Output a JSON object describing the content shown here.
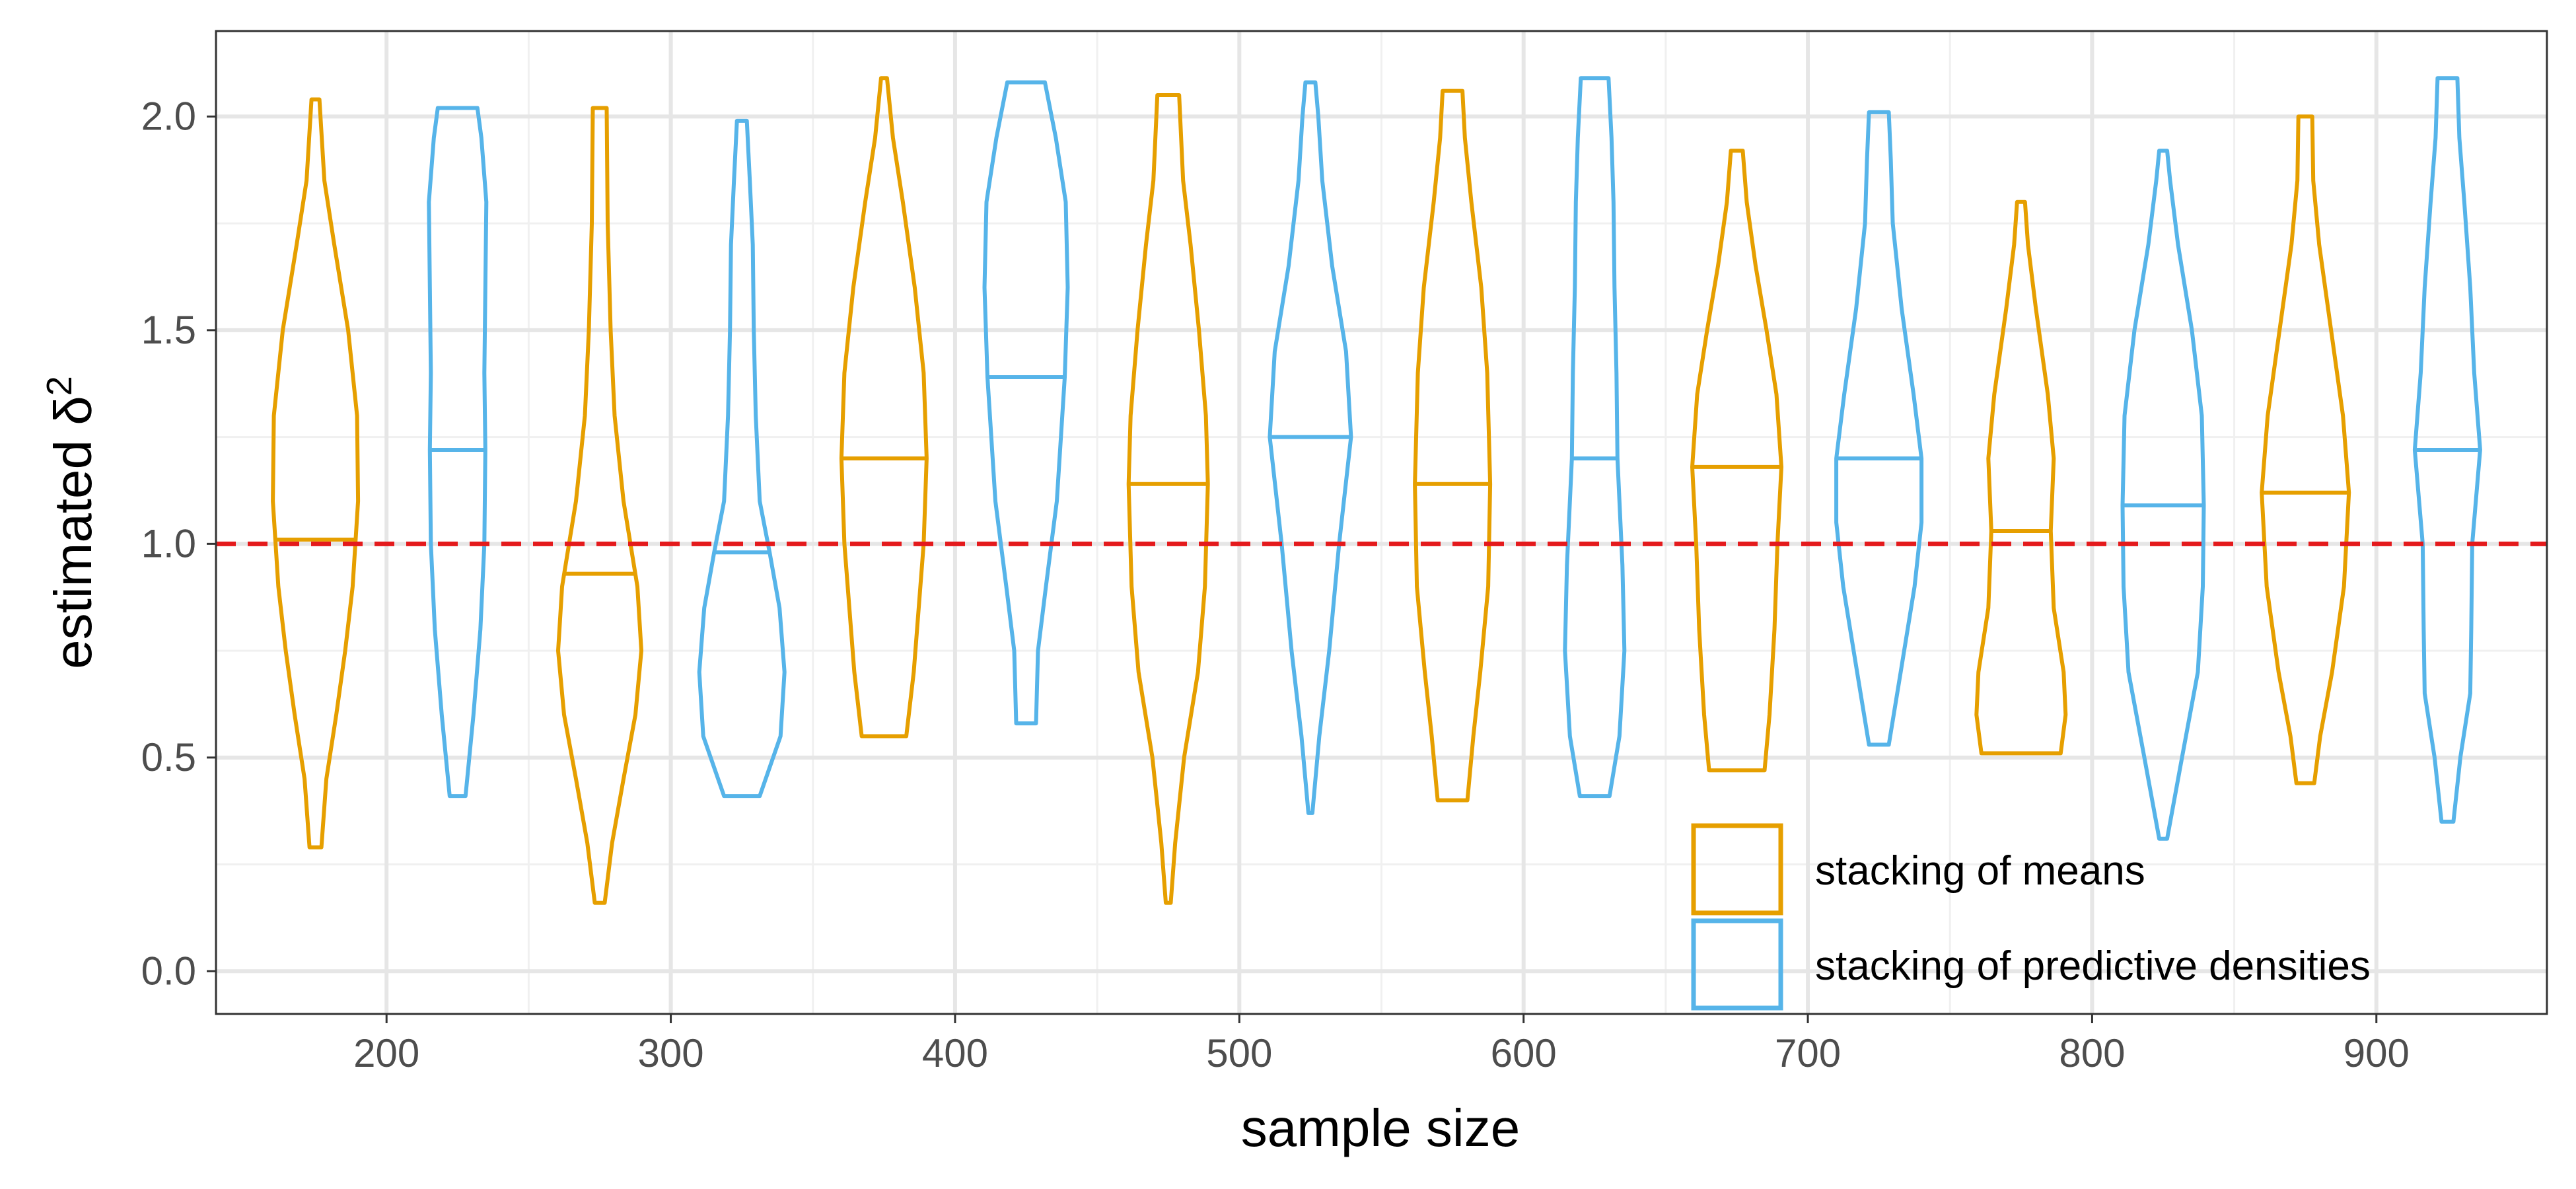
{
  "chart_data": {
    "type": "violin",
    "xlabel": "sample size",
    "ylabel": "estimated δ",
    "ylabel_superscript": "2",
    "xlim": [
      140,
      960
    ],
    "ylim": [
      -0.1,
      2.2
    ],
    "x_ticks": [
      200,
      300,
      400,
      500,
      600,
      700,
      800,
      900
    ],
    "x_tick_labels": [
      "200",
      "300",
      "400",
      "500",
      "600",
      "700",
      "800",
      "900"
    ],
    "y_ticks": [
      0.0,
      0.5,
      1.0,
      1.5,
      2.0
    ],
    "y_tick_labels": [
      "0.0",
      "0.5",
      "1.0",
      "1.5",
      "2.0"
    ],
    "y_minor_ticks": [
      0.25,
      0.75,
      1.25,
      1.75
    ],
    "x_minor_ticks": [
      250,
      350,
      450,
      550,
      650,
      750,
      850
    ],
    "grid": true,
    "reference_line": {
      "y": 1.0,
      "color": "#e41a1c",
      "style": "dashed"
    },
    "legend_position": "bottom-right",
    "dodge_offset": 25,
    "series": [
      {
        "name": "stacking of means",
        "color": "#E69F00",
        "dodge": -1,
        "violins": [
          {
            "x": 200,
            "min": 0.29,
            "max": 2.04,
            "median": 1.01,
            "profile": [
              [
                0.29,
                0.12
              ],
              [
                0.45,
                0.22
              ],
              [
                0.6,
                0.42
              ],
              [
                0.75,
                0.6
              ],
              [
                0.9,
                0.75
              ],
              [
                1.1,
                0.86
              ],
              [
                1.3,
                0.84
              ],
              [
                1.5,
                0.66
              ],
              [
                1.7,
                0.38
              ],
              [
                1.85,
                0.18
              ],
              [
                2.04,
                0.08
              ]
            ]
          },
          {
            "x": 300,
            "min": 0.16,
            "max": 2.02,
            "median": 0.93,
            "profile": [
              [
                0.16,
                0.1
              ],
              [
                0.3,
                0.25
              ],
              [
                0.45,
                0.48
              ],
              [
                0.6,
                0.72
              ],
              [
                0.75,
                0.84
              ],
              [
                0.9,
                0.76
              ],
              [
                1.1,
                0.48
              ],
              [
                1.3,
                0.3
              ],
              [
                1.5,
                0.22
              ],
              [
                1.75,
                0.16
              ],
              [
                2.02,
                0.14
              ]
            ]
          },
          {
            "x": 400,
            "min": 0.55,
            "max": 2.09,
            "median": 1.2,
            "profile": [
              [
                0.55,
                0.45
              ],
              [
                0.7,
                0.6
              ],
              [
                0.85,
                0.7
              ],
              [
                1.0,
                0.8
              ],
              [
                1.2,
                0.86
              ],
              [
                1.4,
                0.8
              ],
              [
                1.6,
                0.62
              ],
              [
                1.8,
                0.38
              ],
              [
                1.95,
                0.18
              ],
              [
                2.09,
                0.06
              ]
            ]
          },
          {
            "x": 500,
            "min": 0.16,
            "max": 2.05,
            "median": 1.14,
            "profile": [
              [
                0.16,
                0.05
              ],
              [
                0.3,
                0.14
              ],
              [
                0.5,
                0.32
              ],
              [
                0.7,
                0.6
              ],
              [
                0.9,
                0.74
              ],
              [
                1.14,
                0.8
              ],
              [
                1.3,
                0.76
              ],
              [
                1.5,
                0.62
              ],
              [
                1.7,
                0.45
              ],
              [
                1.85,
                0.3
              ],
              [
                2.05,
                0.22
              ]
            ]
          },
          {
            "x": 600,
            "min": 0.4,
            "max": 2.06,
            "median": 1.14,
            "profile": [
              [
                0.4,
                0.3
              ],
              [
                0.55,
                0.42
              ],
              [
                0.7,
                0.56
              ],
              [
                0.9,
                0.72
              ],
              [
                1.14,
                0.76
              ],
              [
                1.4,
                0.7
              ],
              [
                1.6,
                0.58
              ],
              [
                1.8,
                0.38
              ],
              [
                1.95,
                0.25
              ],
              [
                2.06,
                0.2
              ]
            ]
          },
          {
            "x": 700,
            "min": 0.47,
            "max": 1.92,
            "median": 1.18,
            "profile": [
              [
                0.47,
                0.56
              ],
              [
                0.6,
                0.66
              ],
              [
                0.8,
                0.76
              ],
              [
                1.0,
                0.82
              ],
              [
                1.18,
                0.9
              ],
              [
                1.35,
                0.8
              ],
              [
                1.5,
                0.6
              ],
              [
                1.65,
                0.38
              ],
              [
                1.8,
                0.2
              ],
              [
                1.92,
                0.12
              ]
            ]
          },
          {
            "x": 800,
            "min": 0.51,
            "max": 1.8,
            "median": 1.03,
            "profile": [
              [
                0.51,
                0.8
              ],
              [
                0.6,
                0.9
              ],
              [
                0.7,
                0.86
              ],
              [
                0.85,
                0.66
              ],
              [
                1.03,
                0.6
              ],
              [
                1.2,
                0.66
              ],
              [
                1.35,
                0.54
              ],
              [
                1.55,
                0.3
              ],
              [
                1.7,
                0.14
              ],
              [
                1.8,
                0.08
              ]
            ]
          },
          {
            "x": 900,
            "min": 0.44,
            "max": 2.0,
            "median": 1.12,
            "profile": [
              [
                0.44,
                0.18
              ],
              [
                0.55,
                0.3
              ],
              [
                0.7,
                0.54
              ],
              [
                0.9,
                0.78
              ],
              [
                1.12,
                0.88
              ],
              [
                1.3,
                0.76
              ],
              [
                1.5,
                0.52
              ],
              [
                1.7,
                0.28
              ],
              [
                1.85,
                0.16
              ],
              [
                2.0,
                0.14
              ]
            ]
          }
        ]
      },
      {
        "name": "stacking of predictive densities",
        "color": "#56B4E9",
        "dodge": 1,
        "violins": [
          {
            "x": 200,
            "min": 0.41,
            "max": 2.02,
            "median": 1.22,
            "profile": [
              [
                0.41,
                0.16
              ],
              [
                0.6,
                0.32
              ],
              [
                0.8,
                0.46
              ],
              [
                1.0,
                0.54
              ],
              [
                1.22,
                0.56
              ],
              [
                1.4,
                0.54
              ],
              [
                1.6,
                0.56
              ],
              [
                1.8,
                0.58
              ],
              [
                1.95,
                0.48
              ],
              [
                2.02,
                0.4
              ]
            ]
          },
          {
            "x": 300,
            "min": 0.41,
            "max": 1.99,
            "median": 0.98,
            "profile": [
              [
                0.41,
                0.36
              ],
              [
                0.55,
                0.78
              ],
              [
                0.7,
                0.86
              ],
              [
                0.85,
                0.76
              ],
              [
                0.98,
                0.56
              ],
              [
                1.1,
                0.36
              ],
              [
                1.3,
                0.28
              ],
              [
                1.5,
                0.24
              ],
              [
                1.7,
                0.22
              ],
              [
                1.85,
                0.16
              ],
              [
                1.99,
                0.1
              ]
            ]
          },
          {
            "x": 400,
            "min": 0.58,
            "max": 2.08,
            "median": 1.39,
            "profile": [
              [
                0.58,
                0.2
              ],
              [
                0.75,
                0.24
              ],
              [
                0.9,
                0.4
              ],
              [
                1.1,
                0.62
              ],
              [
                1.39,
                0.78
              ],
              [
                1.6,
                0.84
              ],
              [
                1.8,
                0.8
              ],
              [
                1.95,
                0.6
              ],
              [
                2.08,
                0.38
              ]
            ]
          },
          {
            "x": 500,
            "min": 0.37,
            "max": 2.08,
            "median": 1.25,
            "profile": [
              [
                0.37,
                0.04
              ],
              [
                0.55,
                0.18
              ],
              [
                0.75,
                0.38
              ],
              [
                1.0,
                0.58
              ],
              [
                1.25,
                0.82
              ],
              [
                1.45,
                0.72
              ],
              [
                1.65,
                0.44
              ],
              [
                1.85,
                0.24
              ],
              [
                2.0,
                0.16
              ],
              [
                2.08,
                0.1
              ]
            ]
          },
          {
            "x": 600,
            "min": 0.41,
            "max": 2.09,
            "median": 1.2,
            "profile": [
              [
                0.41,
                0.3
              ],
              [
                0.55,
                0.5
              ],
              [
                0.75,
                0.6
              ],
              [
                0.95,
                0.56
              ],
              [
                1.2,
                0.46
              ],
              [
                1.4,
                0.44
              ],
              [
                1.6,
                0.4
              ],
              [
                1.8,
                0.38
              ],
              [
                1.95,
                0.34
              ],
              [
                2.09,
                0.28
              ]
            ]
          },
          {
            "x": 700,
            "min": 0.53,
            "max": 2.01,
            "median": 1.2,
            "profile": [
              [
                0.53,
                0.2
              ],
              [
                0.7,
                0.44
              ],
              [
                0.9,
                0.72
              ],
              [
                1.05,
                0.86
              ],
              [
                1.2,
                0.86
              ],
              [
                1.35,
                0.7
              ],
              [
                1.55,
                0.46
              ],
              [
                1.75,
                0.28
              ],
              [
                1.9,
                0.24
              ],
              [
                2.01,
                0.2
              ]
            ]
          },
          {
            "x": 800,
            "min": 0.31,
            "max": 1.92,
            "median": 1.09,
            "profile": [
              [
                0.31,
                0.08
              ],
              [
                0.5,
                0.38
              ],
              [
                0.7,
                0.7
              ],
              [
                0.9,
                0.8
              ],
              [
                1.09,
                0.82
              ],
              [
                1.3,
                0.78
              ],
              [
                1.5,
                0.58
              ],
              [
                1.7,
                0.3
              ],
              [
                1.85,
                0.14
              ],
              [
                1.92,
                0.08
              ]
            ]
          },
          {
            "x": 900,
            "min": 0.35,
            "max": 2.09,
            "median": 1.22,
            "profile": [
              [
                0.35,
                0.12
              ],
              [
                0.5,
                0.26
              ],
              [
                0.65,
                0.46
              ],
              [
                0.8,
                0.48
              ],
              [
                1.0,
                0.5
              ],
              [
                1.22,
                0.66
              ],
              [
                1.4,
                0.54
              ],
              [
                1.6,
                0.46
              ],
              [
                1.8,
                0.34
              ],
              [
                1.95,
                0.24
              ],
              [
                2.09,
                0.2
              ]
            ]
          }
        ]
      }
    ]
  }
}
